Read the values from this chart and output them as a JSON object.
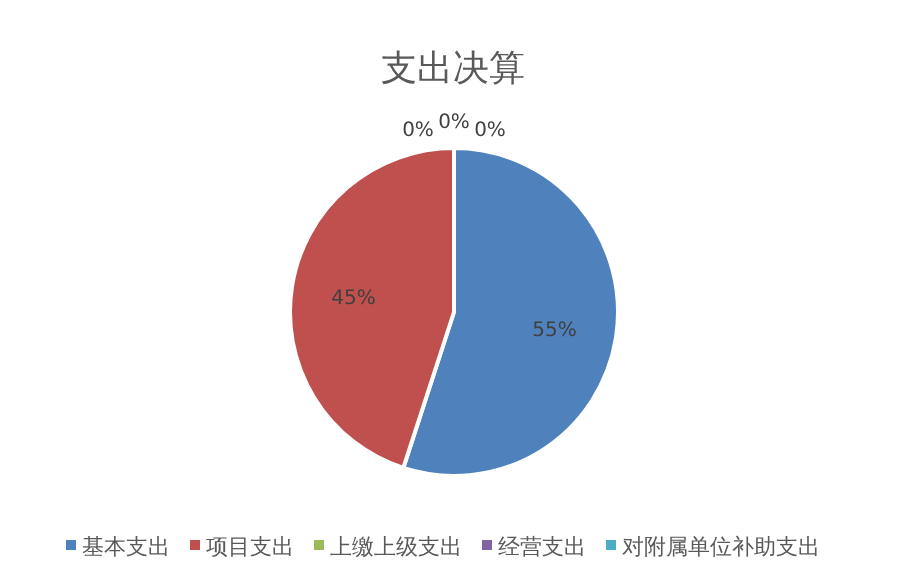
{
  "chart_data": {
    "type": "pie",
    "title": "支出决算",
    "categories": [
      "基本支出",
      "项目支出",
      "上缴上级支出",
      "经营支出",
      "对附属单位补助支出"
    ],
    "values": [
      55,
      45,
      0,
      0,
      0
    ],
    "colors": [
      "#4f81bd",
      "#c0504d",
      "#9bbb59",
      "#8064a2",
      "#4bacc6"
    ],
    "value_labels": [
      "55%",
      "45%",
      "0%",
      "0%",
      "0%"
    ],
    "legend": "bottom"
  }
}
